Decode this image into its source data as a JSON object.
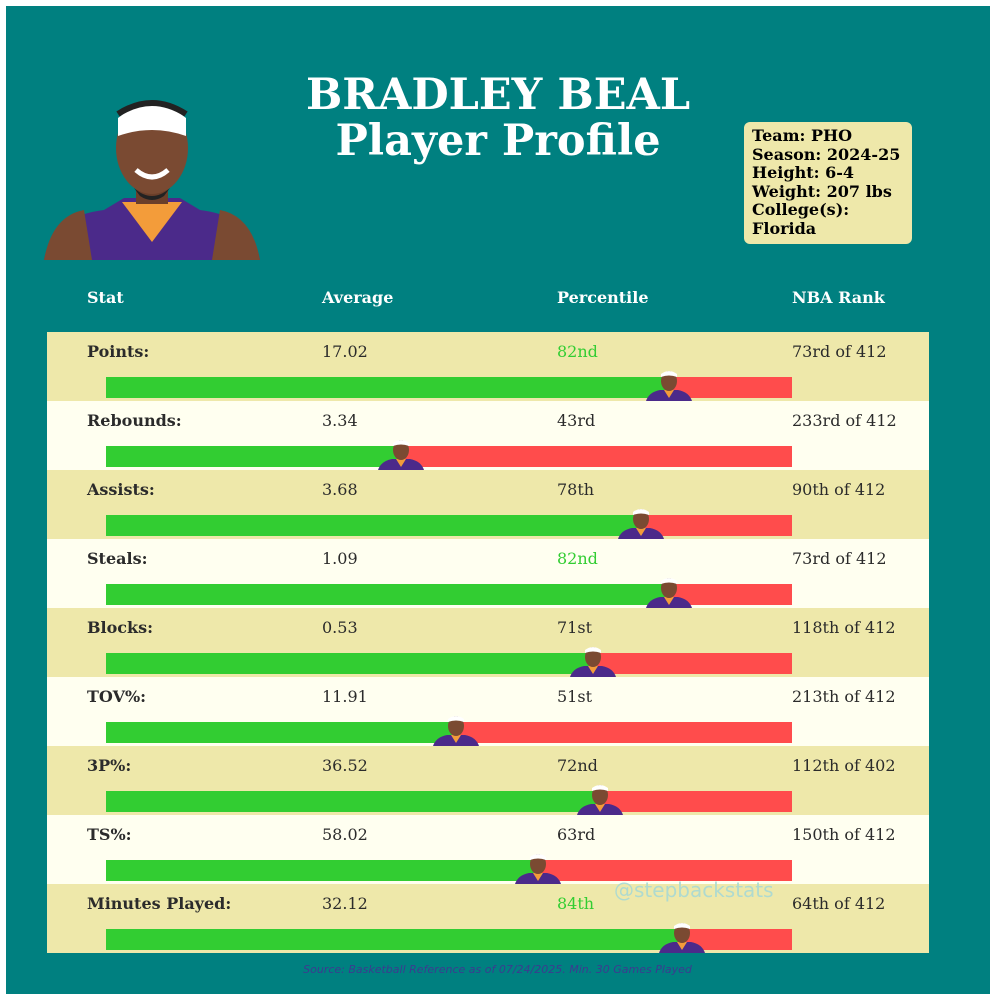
{
  "header": {
    "title_line1": "BRADLEY BEAL",
    "title_line2": "Player Profile"
  },
  "info": {
    "team": "Team: PHO",
    "season": "Season: 2024-25",
    "height": "Height: 6-4",
    "weight": "Weight: 207 lbs",
    "college_label": "College(s):",
    "college": "Florida"
  },
  "columns": {
    "stat": "Stat",
    "average": "Average",
    "percentile": "Percentile",
    "rank": "NBA Rank"
  },
  "colors": {
    "background": "#008080",
    "row_odd": "#eee8aa",
    "row_even": "#fffff0",
    "bar_good": "#32cd32",
    "bar_bad": "#ff4c4c",
    "highlight_text": "#32cd32"
  },
  "chart_data": {
    "type": "bar",
    "categories": [
      "Points:",
      "Rebounds:",
      "Assists:",
      "Steals:",
      "Blocks:",
      "TOV%:",
      "3P%:",
      "TS%:",
      "Minutes Played:"
    ],
    "averages": [
      "17.02",
      "3.34",
      "3.68",
      "1.09",
      "0.53",
      "11.91",
      "36.52",
      "58.02",
      "32.12"
    ],
    "percentile_labels": [
      "82nd",
      "43rd",
      "78th",
      "82nd",
      "71st",
      "51st",
      "72nd",
      "63rd",
      "84th"
    ],
    "values": [
      82,
      43,
      78,
      82,
      71,
      51,
      72,
      63,
      84
    ],
    "ranks": [
      "73rd of 412",
      "233rd of 412",
      "90th of 412",
      "73rd of 412",
      "118th of 412",
      "213th of 412",
      "112th of 402",
      "150th of 412",
      "64th of 412"
    ],
    "highlighted": [
      true,
      false,
      false,
      true,
      false,
      false,
      false,
      false,
      true
    ],
    "xlim": [
      0,
      100
    ]
  },
  "watermark": "@stepbackstats",
  "source": "Source: Basketball Reference as of 07/24/2025. Min. 30 Games Played"
}
